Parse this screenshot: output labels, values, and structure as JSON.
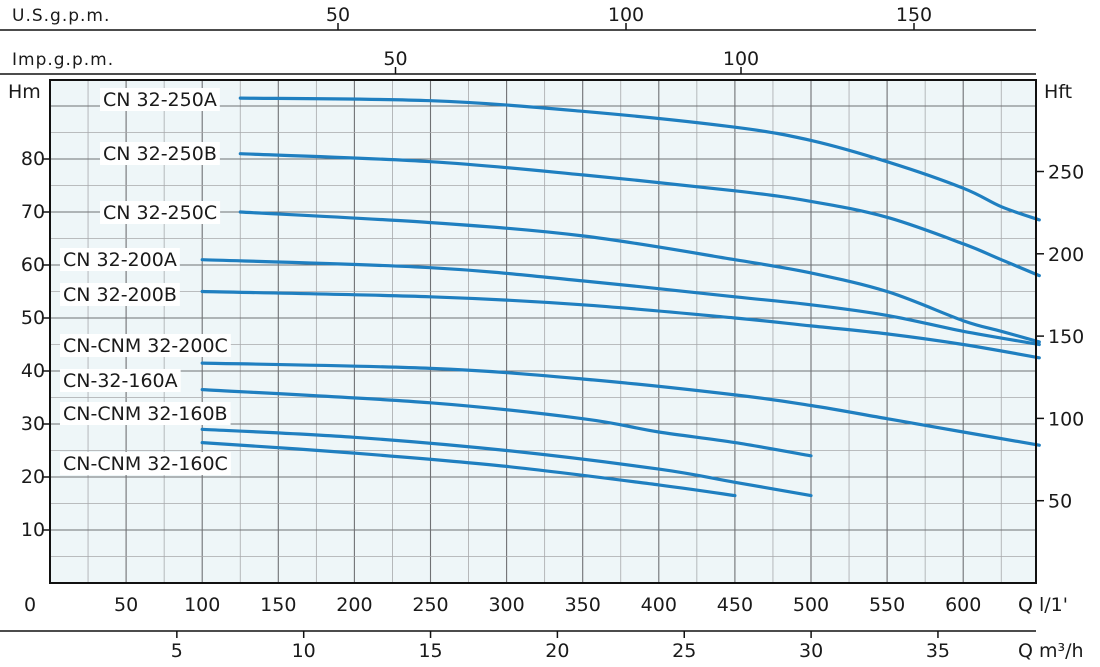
{
  "chart_data": {
    "type": "line",
    "axes": {
      "left": {
        "label": "Hm",
        "range": [
          0,
          105
        ],
        "ticks": [
          10,
          20,
          30,
          40,
          50,
          60,
          70,
          80
        ],
        "origin_label": "0"
      },
      "right": {
        "label": "Hft",
        "ticks": [
          50,
          100,
          150,
          200,
          250
        ]
      },
      "bottom_lpm": {
        "unit_label": "Q  l/1'",
        "range": [
          0,
          650
        ],
        "ticks": [
          50,
          100,
          150,
          200,
          250,
          300,
          350,
          400,
          450,
          500,
          550,
          600
        ]
      },
      "bottom_m3h": {
        "unit_label": "Q  m³/h",
        "ticks": [
          5,
          10,
          15,
          20,
          25,
          30,
          35
        ]
      },
      "top_usgpm": {
        "label": "U.S.g.p.m.",
        "ticks": [
          50,
          100,
          150
        ]
      },
      "top_impgpm": {
        "label": "Imp.g.p.m.",
        "ticks": [
          50,
          100
        ]
      },
      "grid": true
    },
    "series": [
      {
        "name": "CN 32-250A",
        "points": [
          [
            125,
            91.5
          ],
          [
            250,
            91
          ],
          [
            350,
            89
          ],
          [
            450,
            86
          ],
          [
            500,
            83.5
          ],
          [
            550,
            79.5
          ],
          [
            600,
            74.5
          ],
          [
            625,
            71
          ],
          [
            650,
            68.5
          ]
        ]
      },
      {
        "name": "CN 32-250B",
        "points": [
          [
            125,
            81
          ],
          [
            250,
            79.5
          ],
          [
            350,
            77
          ],
          [
            450,
            74
          ],
          [
            500,
            72
          ],
          [
            550,
            69
          ],
          [
            600,
            64
          ],
          [
            625,
            61
          ],
          [
            650,
            58
          ]
        ]
      },
      {
        "name": "CN 32-250C",
        "points": [
          [
            125,
            70
          ],
          [
            250,
            68
          ],
          [
            350,
            65.5
          ],
          [
            450,
            61
          ],
          [
            500,
            58.5
          ],
          [
            550,
            55
          ],
          [
            600,
            49.5
          ],
          [
            625,
            47.5
          ],
          [
            650,
            45.5
          ]
        ]
      },
      {
        "name": "CN 32-200A",
        "points": [
          [
            100,
            61
          ],
          [
            250,
            59.5
          ],
          [
            350,
            57
          ],
          [
            450,
            54
          ],
          [
            500,
            52.5
          ],
          [
            550,
            50.5
          ],
          [
            600,
            47.5
          ],
          [
            650,
            45
          ]
        ]
      },
      {
        "name": "CN 32-200B",
        "points": [
          [
            100,
            55
          ],
          [
            250,
            54
          ],
          [
            350,
            52.5
          ],
          [
            450,
            50
          ],
          [
            500,
            48.5
          ],
          [
            550,
            47
          ],
          [
            600,
            45
          ],
          [
            650,
            42.5
          ]
        ]
      },
      {
        "name": "CN-CNM 32-200C",
        "points": [
          [
            100,
            41.5
          ],
          [
            250,
            40.5
          ],
          [
            350,
            38.5
          ],
          [
            450,
            35.5
          ],
          [
            500,
            33.5
          ],
          [
            550,
            31
          ],
          [
            600,
            28.5
          ],
          [
            650,
            26
          ]
        ]
      },
      {
        "name": "CN-32-160A",
        "points": [
          [
            100,
            36.5
          ],
          [
            250,
            34
          ],
          [
            350,
            31
          ],
          [
            400,
            28.5
          ],
          [
            450,
            26.5
          ],
          [
            500,
            24
          ]
        ]
      },
      {
        "name": "CN-CNM 32-160B",
        "points": [
          [
            100,
            29
          ],
          [
            200,
            27.5
          ],
          [
            300,
            25
          ],
          [
            400,
            21.5
          ],
          [
            450,
            19
          ],
          [
            500,
            16.5
          ]
        ]
      },
      {
        "name": "CN-CNM 32-160C",
        "points": [
          [
            100,
            26.5
          ],
          [
            200,
            24.5
          ],
          [
            300,
            22
          ],
          [
            400,
            18.5
          ],
          [
            450,
            16.5
          ]
        ]
      }
    ]
  }
}
